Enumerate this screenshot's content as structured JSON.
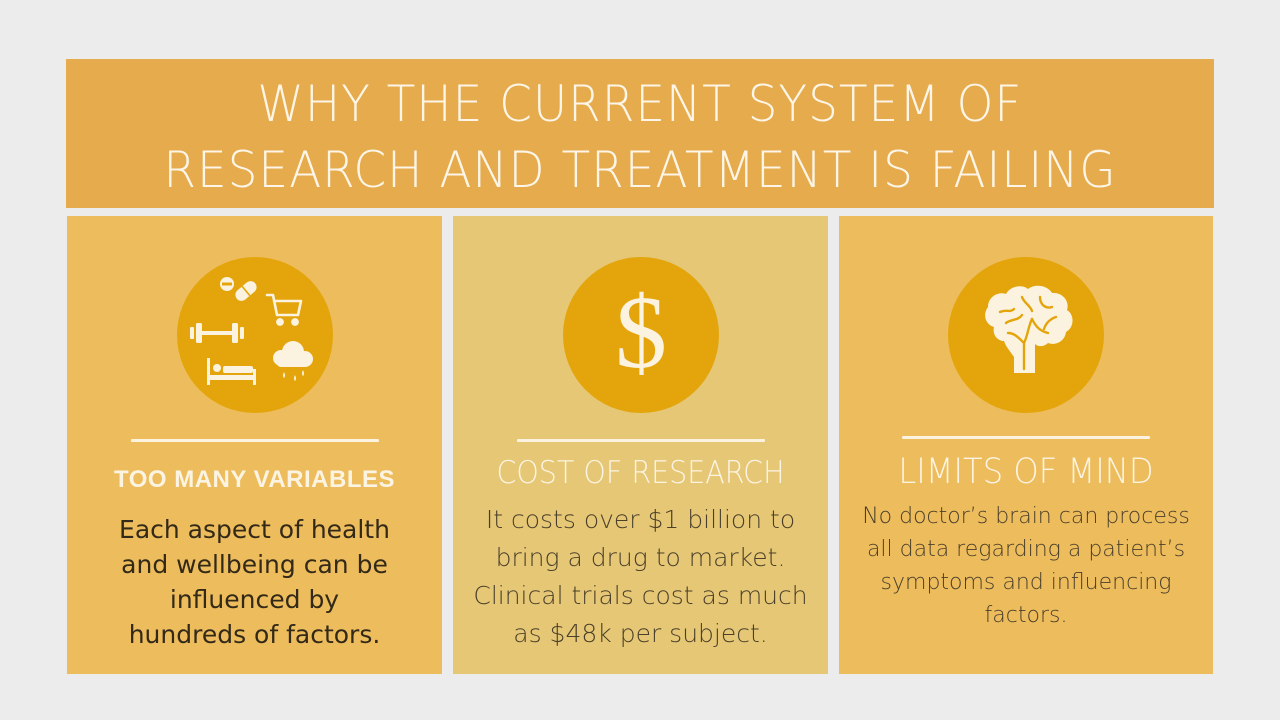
{
  "title": {
    "line1": "WHY THE CURRENT SYSTEM OF",
    "line2": "RESEARCH AND TREATMENT IS FAILING"
  },
  "panels": [
    {
      "heading": "TOO MANY VARIABLES",
      "icon": "lifestyle-factors-icon",
      "body": [
        "Each aspect of health",
        "and wellbeing can be",
        "influenced by",
        "hundreds of factors."
      ]
    },
    {
      "heading": "COST OF RESEARCH",
      "icon": "dollar-icon",
      "body": [
        "It costs over $1 billion to",
        "bring a drug to market.",
        "Clinical trials cost as much",
        "as $48k per subject."
      ]
    },
    {
      "heading": "LIMITS OF MIND",
      "icon": "brain-icon",
      "body": [
        "No doctor’s brain can process",
        "all data regarding a patient’s",
        "symptoms and influencing",
        "factors."
      ]
    }
  ],
  "colors": {
    "background": "#ececec",
    "banner": "#e5ab4c",
    "panel_side": "#edbc5c",
    "panel_center": "#e5c775",
    "circle": "#e4a50c",
    "light_text": "#fcf4e3"
  }
}
